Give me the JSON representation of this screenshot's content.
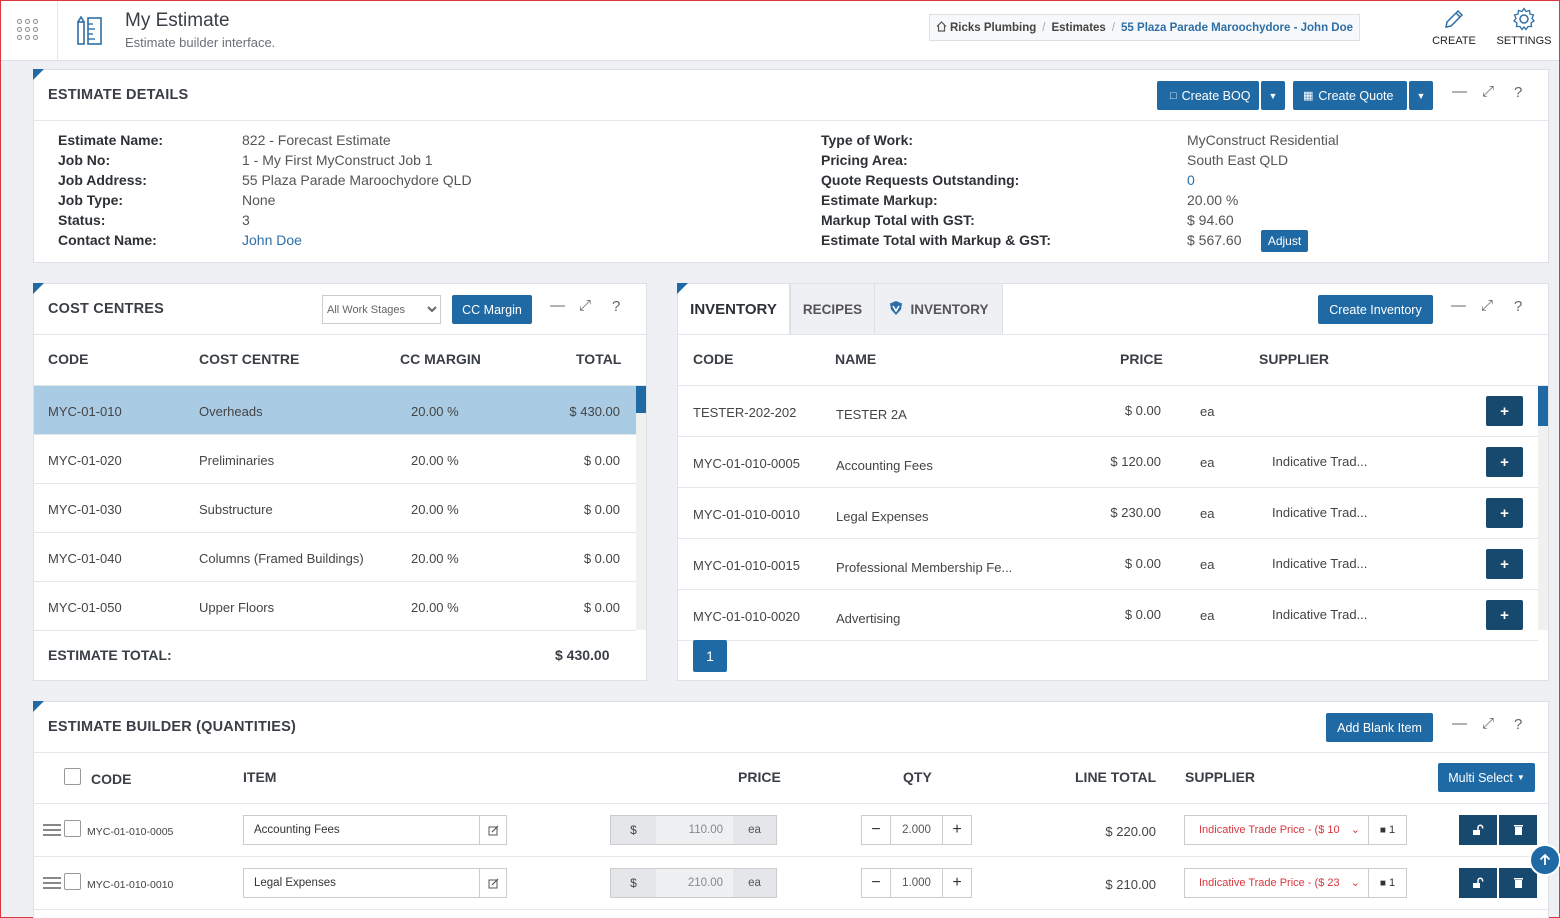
{
  "header": {
    "title": "My Estimate",
    "subtitle": "Estimate builder interface.",
    "breadcrumb": [
      "Ricks Plumbing",
      "Estimates",
      "55 Plaza Parade Maroochydore - John Doe"
    ],
    "create_label": "CREATE",
    "settings_label": "SETTINGS"
  },
  "details": {
    "title": "ESTIMATE DETAILS",
    "create_boq": "Create BOQ",
    "create_quote": "Create Quote",
    "left": [
      {
        "label": "Estimate Name:",
        "value": "822 - Forecast Estimate"
      },
      {
        "label": "Job No:",
        "value": "1 - My First MyConstruct Job 1"
      },
      {
        "label": "Job Address:",
        "value": "55 Plaza Parade Maroochydore QLD"
      },
      {
        "label": "Job Type:",
        "value": "None"
      },
      {
        "label": "Status:",
        "value": "3"
      },
      {
        "label": "Contact Name:",
        "value": "John Doe"
      }
    ],
    "right": [
      {
        "label": "Type of Work:",
        "value": "MyConstruct Residential"
      },
      {
        "label": "Pricing Area:",
        "value": "South East QLD"
      },
      {
        "label": "Quote Requests Outstanding:",
        "value": "0"
      },
      {
        "label": "Estimate Markup:",
        "value": "20.00 %"
      },
      {
        "label": "Markup Total with GST:",
        "value": "$ 94.60"
      },
      {
        "label": "Estimate Total with Markup & GST:",
        "value": "$ 567.60"
      }
    ],
    "adjust_label": "Adjust"
  },
  "cost_centres": {
    "title": "COST CENTRES",
    "stage_select": "All Work Stages",
    "cc_margin_btn": "CC Margin",
    "headers": [
      "CODE",
      "COST CENTRE",
      "CC MARGIN",
      "TOTAL"
    ],
    "rows": [
      {
        "code": "MYC-01-010",
        "name": "Overheads",
        "margin": "20.00 %",
        "total": "$ 430.00"
      },
      {
        "code": "MYC-01-020",
        "name": "Preliminaries",
        "margin": "20.00 %",
        "total": "$ 0.00"
      },
      {
        "code": "MYC-01-030",
        "name": "Substructure",
        "margin": "20.00 %",
        "total": "$ 0.00"
      },
      {
        "code": "MYC-01-040",
        "name": "Columns (Framed Buildings)",
        "margin": "20.00 %",
        "total": "$ 0.00"
      },
      {
        "code": "MYC-01-050",
        "name": "Upper Floors",
        "margin": "20.00 %",
        "total": "$ 0.00"
      }
    ],
    "total_label": "ESTIMATE TOTAL:",
    "total_value": "$ 430.00"
  },
  "inventory": {
    "tabs": [
      "INVENTORY",
      "RECIPES",
      "INVENTORY"
    ],
    "create_btn": "Create Inventory",
    "headers": [
      "CODE",
      "NAME",
      "PRICE",
      "SUPPLIER"
    ],
    "rows": [
      {
        "code": "TESTER-202-202",
        "name": "TESTER 2A",
        "price": "$ 0.00",
        "unit": "ea",
        "supplier": ""
      },
      {
        "code": "MYC-01-010-0005",
        "name": "Accounting Fees",
        "price": "$ 120.00",
        "unit": "ea",
        "supplier": "Indicative Trad..."
      },
      {
        "code": "MYC-01-010-0010",
        "name": "Legal Expenses",
        "price": "$ 230.00",
        "unit": "ea",
        "supplier": "Indicative Trad..."
      },
      {
        "code": "MYC-01-010-0015",
        "name": "Professional Membership Fe...",
        "price": "$ 0.00",
        "unit": "ea",
        "supplier": "Indicative Trad..."
      },
      {
        "code": "MYC-01-010-0020",
        "name": "Advertising",
        "price": "$ 0.00",
        "unit": "ea",
        "supplier": "Indicative Trad..."
      }
    ],
    "page": "1"
  },
  "builder": {
    "title": "ESTIMATE BUILDER (QUANTITIES)",
    "add_blank": "Add Blank Item",
    "multi_select": "Multi Select",
    "headers": [
      "CODE",
      "ITEM",
      "PRICE",
      "QTY",
      "LINE TOTAL",
      "SUPPLIER"
    ],
    "rows": [
      {
        "code": "MYC-01-010-0005",
        "item": "Accounting Fees",
        "currency": "$",
        "price": "110.00",
        "unit": "ea",
        "qty": "2.000",
        "line_total": "$ 220.00",
        "supplier": "Indicative Trade Price - ($ 10",
        "count": "1"
      },
      {
        "code": "MYC-01-010-0010",
        "item": "Legal Expenses",
        "currency": "$",
        "price": "210.00",
        "unit": "ea",
        "qty": "1.000",
        "line_total": "$ 210.00",
        "supplier": "Indicative Trade Price - ($ 23",
        "count": "1"
      }
    ]
  },
  "colors": {
    "accent": "#1f6aa5",
    "dark": "#17496e",
    "selected_row": "#a9cbe4",
    "warning": "#d9363e"
  }
}
